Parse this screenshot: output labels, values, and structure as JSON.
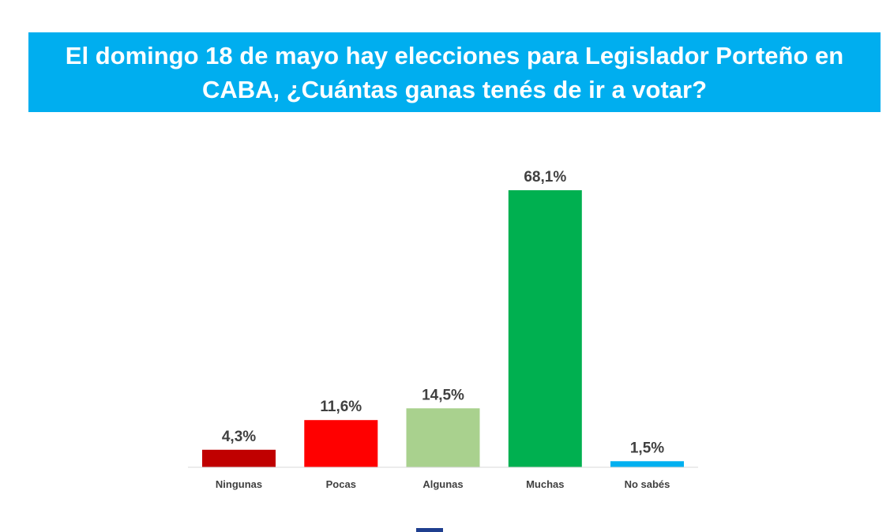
{
  "colors": {
    "banner": "#00aeef",
    "axis": "#d9d9d9",
    "footer_mark": "#1f3f8f"
  },
  "chart_data": {
    "type": "bar",
    "title": "El domingo 18 de mayo hay elecciones para Legislador Porteño en CABA, ¿Cuántas ganas tenés de ir a votar?",
    "categories": [
      "Ningunas",
      "Pocas",
      "Algunas",
      "Muchas",
      "No sabés"
    ],
    "values": [
      4.3,
      11.6,
      14.5,
      68.1,
      1.5
    ],
    "value_labels": [
      "4,3%",
      "11,6%",
      "14,5%",
      "68,1%",
      "1,5%"
    ],
    "colors": [
      "#c00000",
      "#ff0000",
      "#a9d18e",
      "#00b050",
      "#00b0f0"
    ],
    "unit": "%",
    "ylim": [
      0,
      68.1
    ],
    "grid": false,
    "legend": "none",
    "xlabel": "",
    "ylabel": ""
  }
}
